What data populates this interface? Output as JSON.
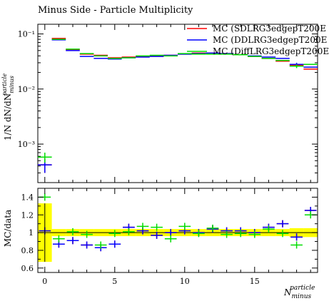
{
  "title": "Minus Side - Particle Multiplicity",
  "top_ylabel": "1/N dN/dN",
  "top_ylabel_sup": "particle",
  "top_ylabel_sub": "minus",
  "bottom_ylabel": "MC/data",
  "xlabel": "N",
  "xlabel_sup": "particle",
  "xlabel_sub": "minus",
  "colors": {
    "data": "#000000",
    "sd": "#ff0000",
    "dd": "#0000ff",
    "diff": "#00dd00",
    "band": "#ffff00"
  },
  "chart_data": [
    {
      "type": "scatter",
      "panel": "main",
      "yscale": "log",
      "xlim": [
        -0.5,
        19.5
      ],
      "ylim": [
        0.0002,
        0.15
      ],
      "yticks": [
        0.001,
        0.01,
        0.1
      ],
      "ytick_labels": [
        "10⁻³",
        "10⁻²",
        "10⁻¹"
      ],
      "legend": "top-right",
      "x": [
        0,
        1,
        2,
        3,
        4,
        5,
        6,
        7,
        8,
        9,
        10,
        11,
        12,
        13,
        14,
        15,
        16,
        17,
        18,
        19
      ],
      "series": [
        {
          "name": "MC (SDLRG3edgepT200E",
          "key": "sd",
          "values": [
            0.00042,
            0.083,
            0.052,
            0.043,
            0.041,
            0.037,
            0.038,
            0.039,
            0.04,
            0.041,
            0.043,
            0.045,
            0.045,
            0.044,
            0.042,
            0.039,
            0.036,
            0.032,
            0.027,
            0.023
          ],
          "yerr": [
            0.00012,
            0,
            0,
            0,
            0,
            0,
            0,
            0,
            0,
            0,
            0,
            0,
            0,
            0,
            0,
            0,
            0,
            0,
            0.002,
            0
          ]
        },
        {
          "name": "MC (DDLRG3edgepT200E",
          "key": "dd",
          "values": [
            0.00042,
            0.078,
            0.05,
            0.039,
            0.036,
            0.035,
            0.037,
            0.038,
            0.039,
            0.041,
            0.043,
            0.044,
            0.045,
            0.044,
            0.042,
            0.04,
            0.038,
            0.036,
            0.028,
            0.025
          ],
          "yerr": [
            0.00012,
            0,
            0,
            0,
            0,
            0,
            0,
            0,
            0,
            0,
            0,
            0,
            0,
            0,
            0,
            0,
            0,
            0,
            0.002,
            0
          ]
        },
        {
          "name": "MC (DiffLRG3edgepT200E",
          "key": "diff",
          "values": [
            0.00058,
            0.08,
            0.053,
            0.044,
            0.04,
            0.036,
            0.037,
            0.04,
            0.041,
            0.04,
            0.044,
            0.043,
            0.043,
            0.043,
            0.042,
            0.039,
            0.036,
            0.033,
            0.026,
            0.028
          ],
          "yerr": [
            0.00012,
            0,
            0,
            0,
            0,
            0,
            0,
            0,
            0,
            0,
            0,
            0,
            0,
            0,
            0,
            0,
            0,
            0,
            0.002,
            0
          ]
        }
      ]
    },
    {
      "type": "scatter",
      "panel": "ratio",
      "xlim": [
        -0.5,
        19.5
      ],
      "ylim": [
        0.55,
        1.5
      ],
      "yticks": [
        0.6,
        0.8,
        1.0,
        1.2,
        1.4
      ],
      "ytick_labels": [
        "0.6",
        "0.8",
        "1",
        "1.2",
        "1.4"
      ],
      "xticks": [
        0,
        5,
        10,
        15
      ],
      "xtick_labels": [
        "0",
        "5",
        "10",
        "15"
      ],
      "x": [
        0,
        1,
        2,
        3,
        4,
        5,
        6,
        7,
        8,
        9,
        10,
        11,
        12,
        13,
        14,
        15,
        16,
        17,
        18,
        19
      ],
      "band_halfwidth": [
        0.33,
        0.04,
        0.04,
        0.04,
        0.04,
        0.04,
        0.04,
        0.04,
        0.04,
        0.04,
        0.04,
        0.04,
        0.04,
        0.04,
        0.04,
        0.04,
        0.04,
        0.04,
        0.05,
        0.05
      ],
      "series": [
        {
          "key": "sd",
          "values": [
            1.02,
            0.87,
            0.91,
            0.86,
            0.83,
            0.87,
            1.06,
            1.02,
            0.97,
            1.0,
            1.02,
            1.0,
            1.04,
            1.02,
            1.02,
            1.0,
            1.06,
            1.1,
            0.95,
            1.25
          ]
        },
        {
          "key": "dd",
          "values": [
            1.02,
            0.87,
            0.91,
            0.86,
            0.83,
            0.87,
            1.06,
            1.02,
            0.97,
            1.0,
            1.02,
            1.0,
            1.04,
            1.02,
            1.02,
            1.0,
            1.06,
            1.1,
            0.95,
            1.25
          ]
        },
        {
          "key": "diff",
          "values": [
            1.4,
            0.93,
            1.01,
            0.98,
            0.86,
            0.99,
            1.01,
            1.07,
            1.06,
            0.93,
            1.07,
            0.99,
            1.05,
            0.98,
            0.99,
            0.98,
            1.04,
            0.99,
            0.86,
            1.2
          ]
        }
      ]
    }
  ]
}
